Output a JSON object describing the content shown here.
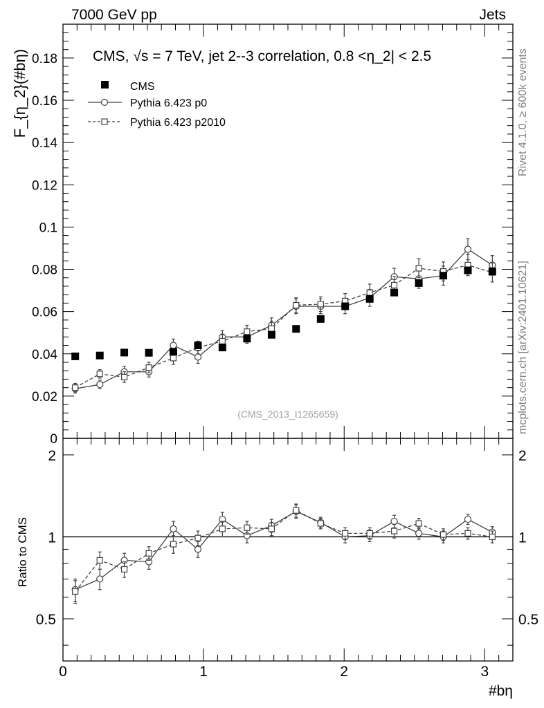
{
  "header": {
    "left": "7000 GeV pp",
    "right": "Jets"
  },
  "side_labels": {
    "rivet": "Rivet 4.1.0, ≥ 600k events",
    "mcplots": "mcplots.cern.ch [arXiv:2401.10621]"
  },
  "watermark": "(CMS_2013_I1265659)",
  "title": "CMS, √s = 7 TeV, jet 2--3 correlation, 0.8 <η_2| < 2.5",
  "colors": {
    "axis": "#000000",
    "data": "#000000",
    "mc": "#404040",
    "side_text": "#808080"
  },
  "chart_data": [
    {
      "type": "scatter",
      "panel": "main",
      "ylabel": "F_{η_2}(#bη)",
      "ylim": [
        0,
        0.196
      ],
      "xlim": [
        0,
        3.2
      ],
      "yticks": [
        0,
        0.02,
        0.04,
        0.06,
        0.08,
        0.1,
        0.12,
        0.14,
        0.16,
        0.18
      ],
      "ytick_labels": [
        "0",
        "0.02",
        "0.04",
        "0.06",
        "0.08",
        "0.1",
        "0.12",
        "0.14",
        "0.16",
        "0.18"
      ],
      "x": [
        0.087,
        0.262,
        0.436,
        0.611,
        0.785,
        0.96,
        1.134,
        1.309,
        1.484,
        1.658,
        1.833,
        2.007,
        2.182,
        2.356,
        2.531,
        2.705,
        2.88,
        3.054
      ],
      "legend": [
        "CMS",
        "Pythia 6.423 p0",
        "Pythia 6.423 p2010"
      ],
      "series": [
        {
          "name": "CMS",
          "marker": "filled-square",
          "values": [
            0.0388,
            0.0392,
            0.0406,
            0.0405,
            0.041,
            0.044,
            0.043,
            0.0472,
            0.049,
            0.0518,
            0.0565,
            0.0625,
            0.066,
            0.069,
            0.0735,
            0.077,
            0.0795,
            0.079
          ]
        },
        {
          "name": "Pythia 6.423 p0",
          "marker": "open-circle",
          "line": "solid",
          "values": [
            0.0235,
            0.0255,
            0.0315,
            0.0315,
            0.044,
            0.0385,
            0.048,
            0.048,
            0.0535,
            0.0625,
            0.0625,
            0.0625,
            0.0665,
            0.0765,
            0.0755,
            0.077,
            0.0895,
            0.082
          ],
          "errors": [
            0.002,
            0.002,
            0.0025,
            0.0025,
            0.003,
            0.003,
            0.003,
            0.003,
            0.0035,
            0.0035,
            0.0035,
            0.0035,
            0.004,
            0.004,
            0.0045,
            0.0045,
            0.005,
            0.0045
          ]
        },
        {
          "name": "Pythia 6.423 p2010",
          "marker": "open-square",
          "line": "dashed",
          "values": [
            0.024,
            0.0305,
            0.029,
            0.0335,
            0.038,
            0.043,
            0.046,
            0.0505,
            0.052,
            0.063,
            0.0635,
            0.065,
            0.069,
            0.0725,
            0.0805,
            0.079,
            0.082,
            0.0785
          ],
          "errors": [
            0.002,
            0.002,
            0.0025,
            0.0025,
            0.003,
            0.003,
            0.003,
            0.003,
            0.0035,
            0.0035,
            0.0035,
            0.0035,
            0.004,
            0.004,
            0.0045,
            0.0045,
            0.005,
            0.0045
          ]
        }
      ]
    },
    {
      "type": "scatter",
      "panel": "ratio",
      "ylabel": "Ratio to CMS",
      "xlabel": "#bη",
      "ylim": [
        0.35,
        2.3
      ],
      "xlim": [
        0,
        3.2
      ],
      "reference_line": 1,
      "yticks": [
        0.5,
        1,
        2
      ],
      "ytick_labels": [
        "0.5",
        "1",
        "2"
      ],
      "xticks": [
        0,
        1,
        2,
        3
      ],
      "xtick_labels": [
        "0",
        "1",
        "2",
        "3"
      ],
      "x": [
        0.087,
        0.262,
        0.436,
        0.611,
        0.785,
        0.96,
        1.134,
        1.309,
        1.484,
        1.658,
        1.833,
        2.007,
        2.182,
        2.356,
        2.531,
        2.705,
        2.88,
        3.054
      ],
      "series": [
        {
          "name": "Pythia 6.423 p0",
          "marker": "open-circle",
          "line": "solid",
          "values": [
            0.64,
            0.7,
            0.82,
            0.81,
            1.07,
            0.9,
            1.16,
            1.01,
            1.1,
            1.24,
            1.13,
            1.0,
            1.01,
            1.14,
            1.03,
            1.0,
            1.16,
            1.04
          ],
          "errors": [
            0.06,
            0.06,
            0.05,
            0.05,
            0.07,
            0.06,
            0.07,
            0.06,
            0.06,
            0.07,
            0.05,
            0.05,
            0.05,
            0.06,
            0.05,
            0.05,
            0.05,
            0.05
          ]
        },
        {
          "name": "Pythia 6.423 p2010",
          "marker": "open-square",
          "line": "dashed",
          "values": [
            0.63,
            0.82,
            0.76,
            0.87,
            0.94,
            0.99,
            1.07,
            1.08,
            1.07,
            1.25,
            1.12,
            1.03,
            1.03,
            1.05,
            1.12,
            1.02,
            1.03,
            1.0
          ],
          "errors": [
            0.06,
            0.06,
            0.05,
            0.05,
            0.07,
            0.06,
            0.07,
            0.06,
            0.06,
            0.07,
            0.05,
            0.05,
            0.05,
            0.06,
            0.05,
            0.05,
            0.05,
            0.05
          ]
        }
      ]
    }
  ]
}
